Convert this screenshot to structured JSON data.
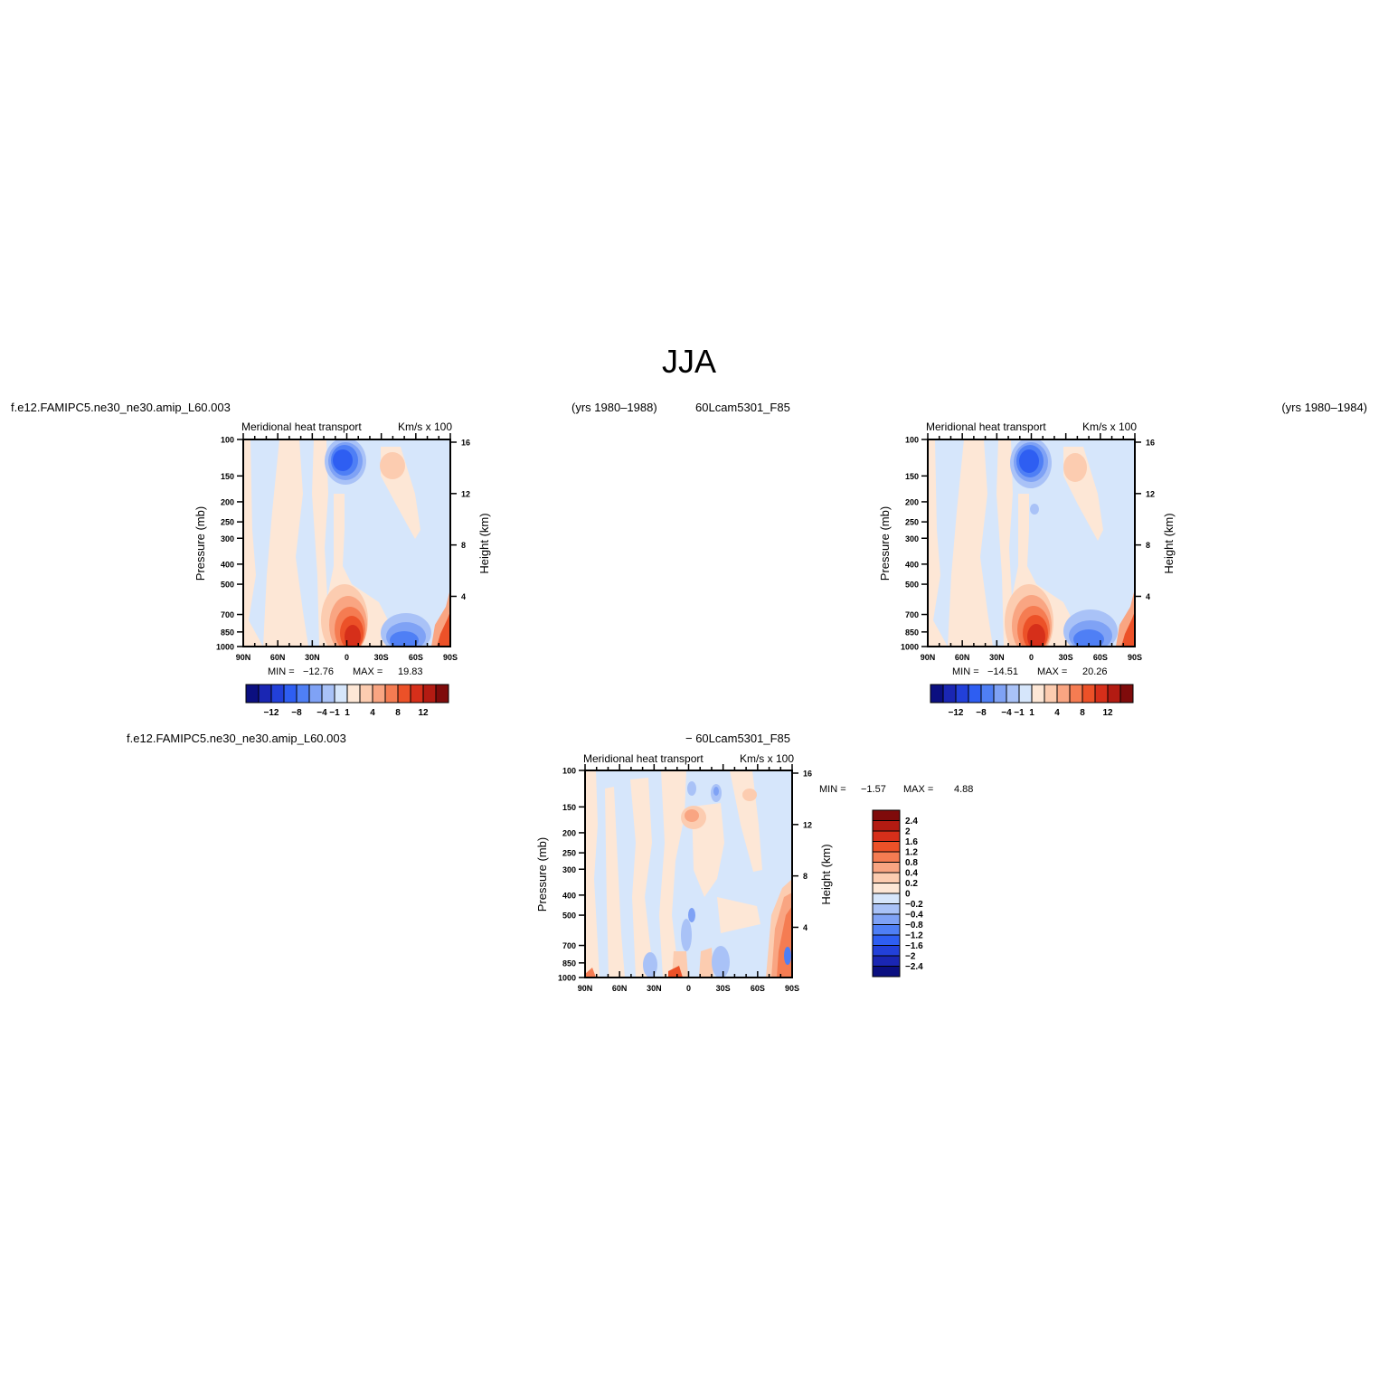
{
  "figure": {
    "title": "JJA",
    "colors": {
      "neg": [
        "#0b0f80",
        "#1a26b3",
        "#2240d9",
        "#2e5ef2",
        "#4f7ff5",
        "#7fa2f5",
        "#a9c2f7",
        "#d6e6fb"
      ],
      "pos": [
        "#fde7d6",
        "#fcccb0",
        "#f9a582",
        "#f57c52",
        "#ec5128",
        "#d62f1a",
        "#b31b12",
        "#7f0b0b"
      ]
    }
  },
  "chart_data": [
    {
      "type": "heatmap",
      "case_label": "f.e12.FAMIPC5.ne30_ne30.amip_L60.003",
      "years_label": "(yrs 1980–1988)",
      "left_title": "Meridional heat transport",
      "right_title": "Km/s x 100",
      "ylabel": "Pressure (mb)",
      "ylabel_right": "Height (km)",
      "yticks": [
        "100",
        "150",
        "200",
        "250",
        "300",
        "400",
        "500",
        "700",
        "850",
        "1000"
      ],
      "yticks_right": [
        "16",
        "12",
        "8",
        "4"
      ],
      "xticks": [
        "90N",
        "60N",
        "30N",
        "0",
        "30S",
        "60S",
        "90S"
      ],
      "min_label": "MIN =",
      "min_value": "−12.76",
      "max_label": "MAX =",
      "max_value": "19.83",
      "colorbar_labels": [
        "−12",
        "−8",
        "−4",
        "−1",
        "1",
        "4",
        "8",
        "12"
      ]
    },
    {
      "type": "heatmap",
      "case_label": "60Lcam5301_F85",
      "years_label": "(yrs 1980–1984)",
      "left_title": "Meridional heat transport",
      "right_title": "Km/s x 100",
      "ylabel": "Pressure (mb)",
      "ylabel_right": "Height (km)",
      "yticks": [
        "100",
        "150",
        "200",
        "250",
        "300",
        "400",
        "500",
        "700",
        "850",
        "1000"
      ],
      "yticks_right": [
        "16",
        "12",
        "8",
        "4"
      ],
      "xticks": [
        "90N",
        "60N",
        "30N",
        "0",
        "30S",
        "60S",
        "90S"
      ],
      "min_label": "MIN =",
      "min_value": "−14.51",
      "max_label": "MAX =",
      "max_value": "20.26",
      "colorbar_labels": [
        "−12",
        "−8",
        "−4",
        "−1",
        "1",
        "4",
        "8",
        "12"
      ]
    },
    {
      "type": "heatmap",
      "case_label": "f.e12.FAMIPC5.ne30_ne30.amip_L60.003",
      "case_label_2": "− 60Lcam5301_F85",
      "left_title": "Meridional heat transport",
      "right_title": "Km/s x 100",
      "ylabel": "Pressure (mb)",
      "ylabel_right": "Height (km)",
      "yticks": [
        "100",
        "150",
        "200",
        "250",
        "300",
        "400",
        "500",
        "700",
        "850",
        "1000"
      ],
      "yticks_right": [
        "16",
        "12",
        "8",
        "4"
      ],
      "xticks": [
        "90N",
        "60N",
        "30N",
        "0",
        "30S",
        "60S",
        "90S"
      ],
      "min_label": "MIN =",
      "min_value": "−1.57",
      "max_label": "MAX =",
      "max_value": "4.88",
      "colorbar_labels": [
        "2.4",
        "2",
        "1.6",
        "1.2",
        "0.8",
        "0.4",
        "0.2",
        "0",
        "−0.2",
        "−0.4",
        "−0.8",
        "−1.2",
        "−1.6",
        "−2",
        "−2.4"
      ]
    }
  ]
}
